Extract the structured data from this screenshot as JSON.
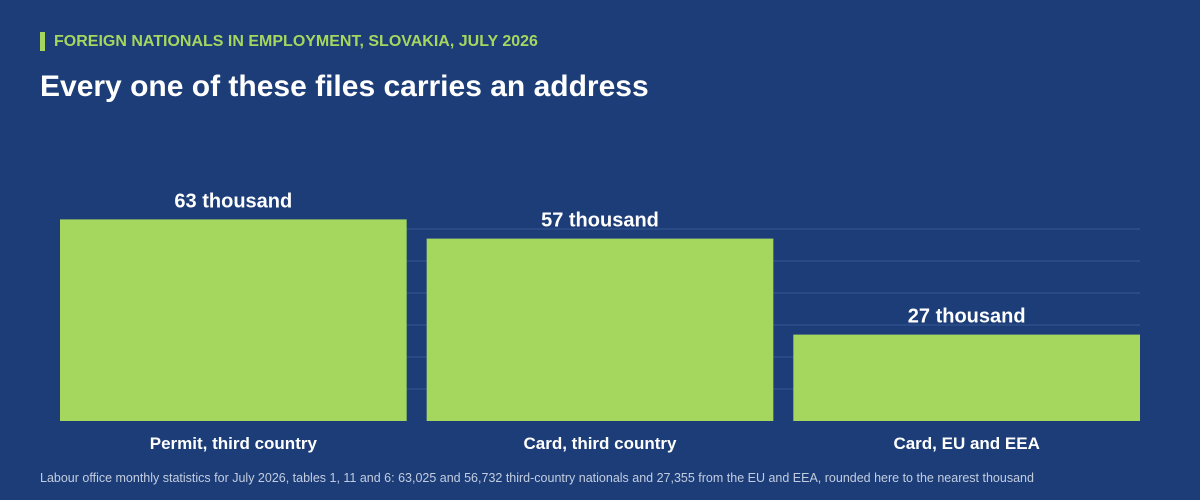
{
  "header": {
    "kicker": "FOREIGN NATIONALS IN EMPLOYMENT, SLOVAKIA, JULY 2026",
    "title": "Every one of these files carries an address"
  },
  "footnote": "Labour office monthly statistics for July 2026, tables 1, 11 and 6: 63,025 and 56,732 third-country nationals and 27,355 from the EU and EEA, rounded here to the nearest thousand",
  "colors": {
    "background": "#1c3d78",
    "bar": "#a5d75f",
    "kicker": "#a5d75f",
    "gridline": "#36578f",
    "text": "#ffffff",
    "footnote": "#c3cde0"
  },
  "chart_data": {
    "type": "bar",
    "unit": "thousand",
    "categories": [
      "Permit, third country",
      "Card, third country",
      "Card, EU and EEA"
    ],
    "values": [
      63,
      57,
      27
    ],
    "value_labels": [
      "63 thousand",
      "57 thousand",
      "27 thousand"
    ],
    "ylim": [
      0,
      80
    ],
    "grid": true,
    "title": "",
    "xlabel": "",
    "ylabel": ""
  }
}
